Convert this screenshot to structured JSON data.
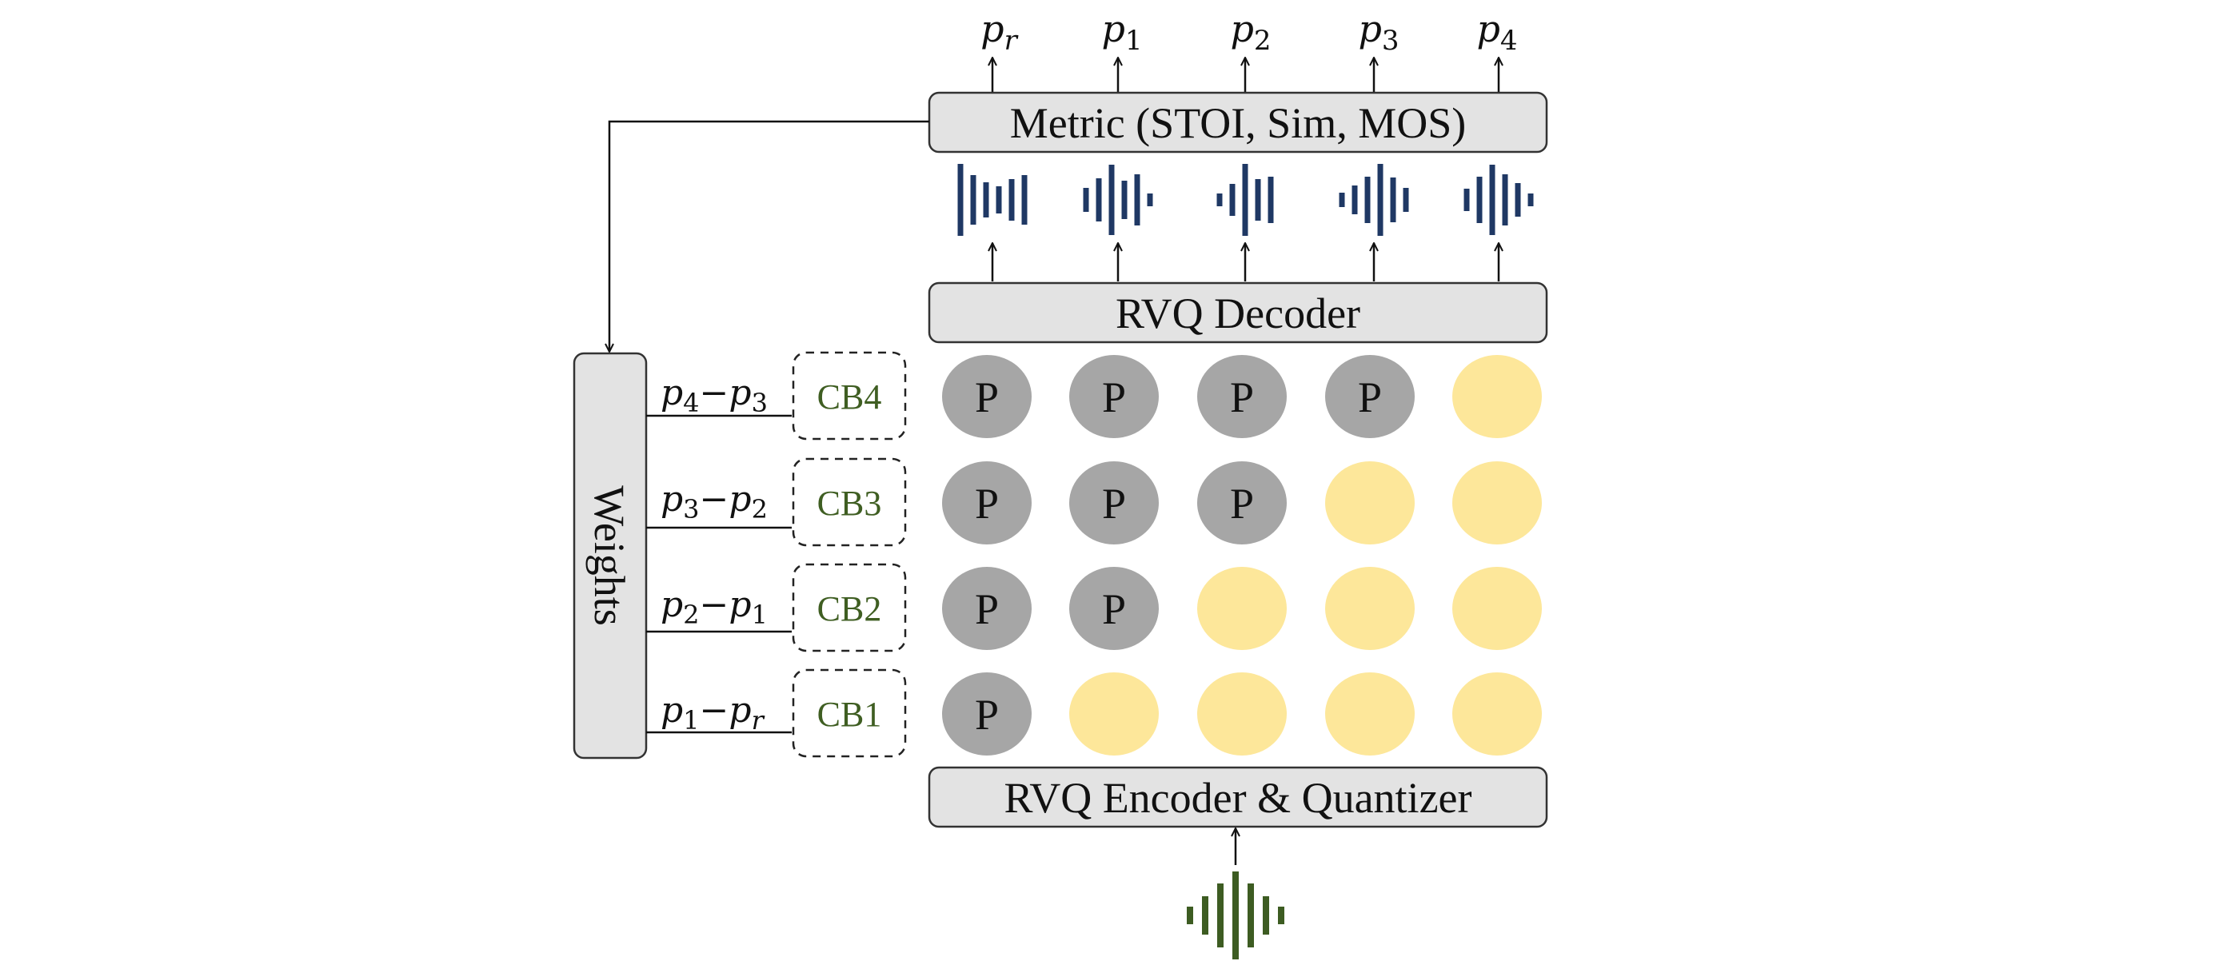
{
  "colors": {
    "box_fill": "#e3e3e3",
    "box_stroke": "#333333",
    "token_gray": "#a6a6a6",
    "token_yellow": "#fde79a",
    "wave_blue": "#1f3864",
    "wave_green": "#3d5c22",
    "codebook_text": "#3f5e22"
  },
  "metric_box": {
    "label": "Metric (STOI, Sim, MOS)"
  },
  "decoder_box": {
    "label": "RVQ Decoder"
  },
  "encoder_box": {
    "label": "RVQ Encoder & Quantizer"
  },
  "weights_box": {
    "label": "Weights"
  },
  "outputs": [
    {
      "base": "p",
      "sub": "r"
    },
    {
      "base": "p",
      "sub": "1"
    },
    {
      "base": "p",
      "sub": "2"
    },
    {
      "base": "p",
      "sub": "3"
    },
    {
      "base": "p",
      "sub": "4"
    }
  ],
  "codebooks": [
    {
      "label": "CB4",
      "diff": {
        "a": "4",
        "b": "3"
      },
      "filled": [
        true,
        true,
        true,
        true,
        false
      ]
    },
    {
      "label": "CB3",
      "diff": {
        "a": "3",
        "b": "2"
      },
      "filled": [
        true,
        true,
        true,
        false,
        false
      ]
    },
    {
      "label": "CB2",
      "diff": {
        "a": "2",
        "b": "1"
      },
      "filled": [
        true,
        true,
        false,
        false,
        false
      ]
    },
    {
      "label": "CB1",
      "diff": {
        "a": "1",
        "b": "r"
      },
      "filled": [
        true,
        false,
        false,
        false,
        false
      ]
    }
  ],
  "token_label": "P",
  "diff_symbol": "p",
  "diff_minus": "−"
}
